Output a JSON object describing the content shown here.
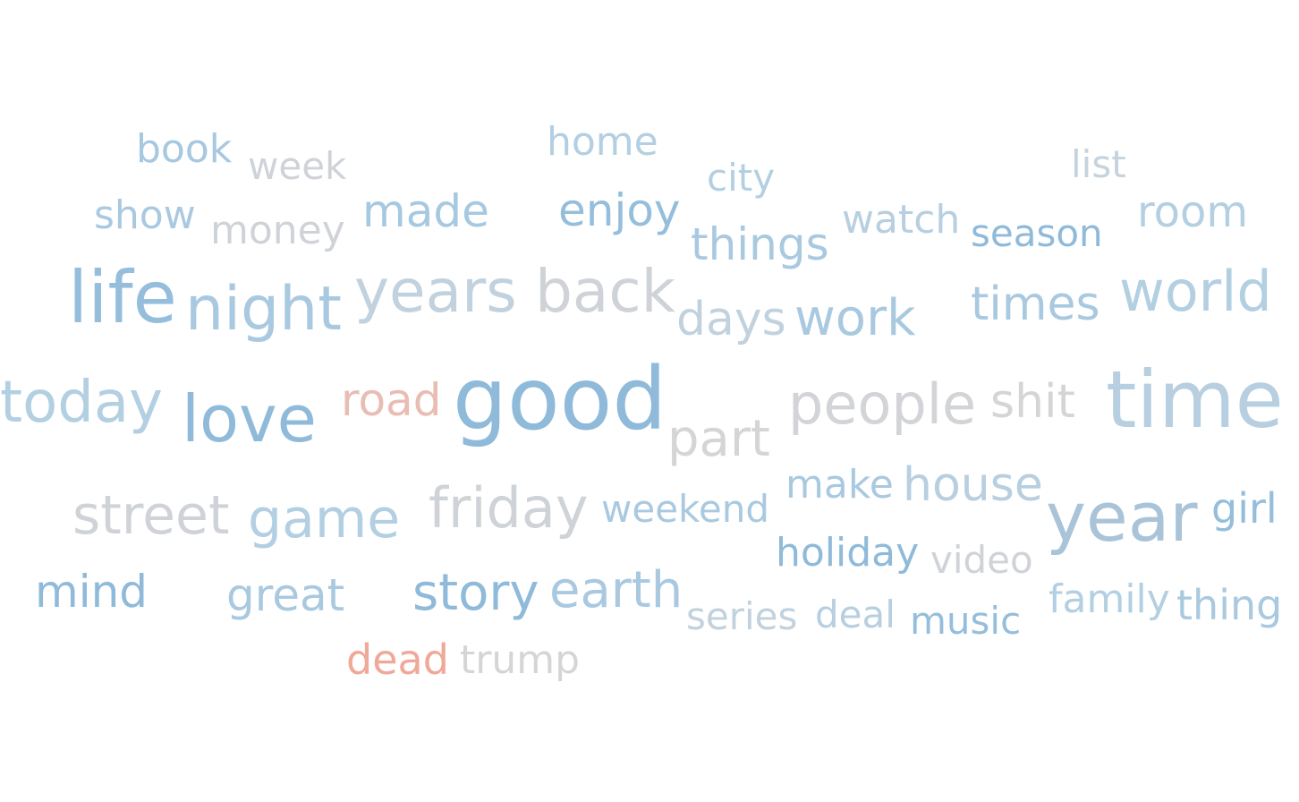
{
  "chart_data": {
    "type": "wordcloud",
    "words": [
      {
        "text": "book",
        "color": "#a6c8e0"
      },
      {
        "text": "week",
        "color": "#cfd3d8"
      },
      {
        "text": "home",
        "color": "#b3cfe2"
      },
      {
        "text": "city",
        "color": "#b3cfe2"
      },
      {
        "text": "list",
        "color": "#c4d3de"
      },
      {
        "text": "show",
        "color": "#a9c9e0"
      },
      {
        "text": "money",
        "color": "#cfd3d8"
      },
      {
        "text": "made",
        "color": "#a6c8e0"
      },
      {
        "text": "enjoy",
        "color": "#95bedc"
      },
      {
        "text": "things",
        "color": "#a9c9e0"
      },
      {
        "text": "watch",
        "color": "#b7cfe0"
      },
      {
        "text": "season",
        "color": "#8fbad9"
      },
      {
        "text": "room",
        "color": "#b3cfe2"
      },
      {
        "text": "life",
        "color": "#95bedc"
      },
      {
        "text": "night",
        "color": "#a9c9e0"
      },
      {
        "text": "years",
        "color": "#c1d2de"
      },
      {
        "text": "back",
        "color": "#cfd3d8"
      },
      {
        "text": "days",
        "color": "#c1d2de"
      },
      {
        "text": "work",
        "color": "#a9c9e0"
      },
      {
        "text": "times",
        "color": "#a9c9e0"
      },
      {
        "text": "world",
        "color": "#b3cfe2"
      },
      {
        "text": "today",
        "color": "#b3cfe2"
      },
      {
        "text": "love",
        "color": "#8fbad9"
      },
      {
        "text": "road",
        "color": "#e8bdb3"
      },
      {
        "text": "good",
        "color": "#8fbad9"
      },
      {
        "text": "part",
        "color": "#d5d5d5"
      },
      {
        "text": "people",
        "color": "#d2d4d7"
      },
      {
        "text": "shit",
        "color": "#d5d5d5"
      },
      {
        "text": "time",
        "color": "#b7cfe0"
      },
      {
        "text": "street",
        "color": "#cfd3d8"
      },
      {
        "text": "game",
        "color": "#b3cfe2"
      },
      {
        "text": "friday",
        "color": "#cfd3d8"
      },
      {
        "text": "weekend",
        "color": "#a9c9e0"
      },
      {
        "text": "make",
        "color": "#a9c9e0"
      },
      {
        "text": "house",
        "color": "#b7cfe0"
      },
      {
        "text": "year",
        "color": "#a9c4d8"
      },
      {
        "text": "girl",
        "color": "#95bedc"
      },
      {
        "text": "holiday",
        "color": "#8fbad9"
      },
      {
        "text": "video",
        "color": "#cfd3d8"
      },
      {
        "text": "mind",
        "color": "#8fbad9"
      },
      {
        "text": "great",
        "color": "#a9c9e0"
      },
      {
        "text": "story",
        "color": "#8fbad9"
      },
      {
        "text": "earth",
        "color": "#a9c9e0"
      },
      {
        "text": "series",
        "color": "#c1d2de"
      },
      {
        "text": "deal",
        "color": "#b7cfe0"
      },
      {
        "text": "music",
        "color": "#95bedc"
      },
      {
        "text": "family",
        "color": "#b3cfe2"
      },
      {
        "text": "thing",
        "color": "#a9c9e0"
      },
      {
        "text": "dead",
        "color": "#f0a898"
      },
      {
        "text": "trump",
        "color": "#d5d5d5"
      }
    ]
  }
}
